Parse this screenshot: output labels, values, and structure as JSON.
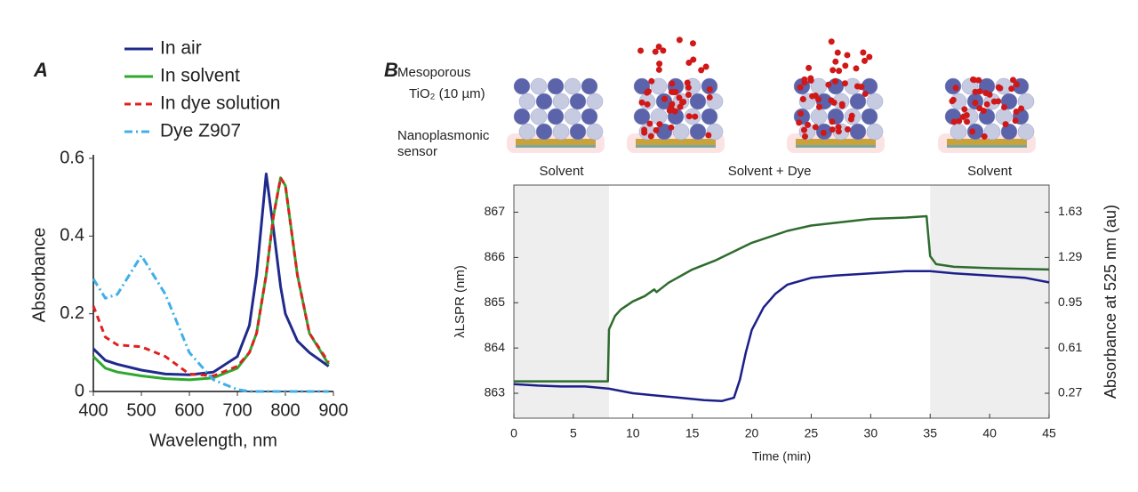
{
  "chart_data": [
    {
      "type": "line",
      "panel_label": "A",
      "xlabel": "Wavelength, nm",
      "ylabel": "Absorbance",
      "xlim": [
        400,
        900
      ],
      "xticks": [
        400,
        500,
        600,
        700,
        800,
        900
      ],
      "ylim": [
        0,
        0.6
      ],
      "yticks": [
        0,
        0.2,
        0.4,
        0.6
      ],
      "legend": "top",
      "x": [
        400,
        425,
        450,
        500,
        550,
        600,
        650,
        700,
        725,
        740,
        760,
        775,
        790,
        800,
        825,
        850,
        890
      ],
      "series": [
        {
          "name": "In air",
          "color": "#1f2a8c",
          "line_style": "solid",
          "values": [
            0.11,
            0.08,
            0.07,
            0.055,
            0.045,
            0.043,
            0.05,
            0.09,
            0.17,
            0.3,
            0.56,
            0.42,
            0.27,
            0.2,
            0.13,
            0.1,
            0.065
          ]
        },
        {
          "name": "In solvent",
          "color": "#2ea82e",
          "line_style": "solid",
          "values": [
            0.09,
            0.06,
            0.05,
            0.04,
            0.033,
            0.03,
            0.035,
            0.06,
            0.1,
            0.15,
            0.3,
            0.45,
            0.55,
            0.53,
            0.3,
            0.15,
            0.07
          ]
        },
        {
          "name": "In dye solution",
          "color": "#e02020",
          "line_style": "dashed",
          "values": [
            0.22,
            0.14,
            0.12,
            0.115,
            0.09,
            0.045,
            0.04,
            0.065,
            0.1,
            0.15,
            0.3,
            0.45,
            0.55,
            0.53,
            0.3,
            0.15,
            0.075
          ]
        },
        {
          "name": "Dye Z907",
          "color": "#3fb0ea",
          "line_style": "dashdot",
          "values": [
            0.29,
            0.24,
            0.25,
            0.35,
            0.25,
            0.1,
            0.03,
            0.005,
            0,
            0,
            0,
            0,
            0,
            0,
            0,
            0,
            0
          ]
        }
      ]
    },
    {
      "type": "line",
      "panel_label": "B",
      "xlabel": "Time (min)",
      "ylabel": "λLSPR (nm)",
      "y2label": "Absorbance at 525 nm (au)",
      "xlim": [
        0,
        45
      ],
      "xticks": [
        0,
        5,
        10,
        15,
        20,
        25,
        30,
        35,
        40,
        45
      ],
      "ylim": [
        862.45,
        867.6
      ],
      "yticks": [
        863,
        864,
        865,
        866,
        867
      ],
      "y2lim": [
        0.083,
        1.834
      ],
      "y2ticks": [
        0.27,
        0.61,
        0.95,
        1.29,
        1.63
      ],
      "regions": [
        {
          "label": "Solvent",
          "start": 0,
          "end": 8,
          "shaded": true
        },
        {
          "label": "Solvent + Dye",
          "start": 8,
          "end": 35,
          "shaded": false
        },
        {
          "label": "Solvent",
          "start": 35,
          "end": 45,
          "shaded": true
        }
      ],
      "series": [
        {
          "color": "#1c1f8a",
          "axis": "y",
          "x": [
            0,
            2,
            4,
            6,
            8,
            10,
            12,
            14,
            16,
            17.5,
            18.5,
            19,
            19.5,
            20,
            21,
            22,
            23,
            25,
            27,
            30,
            33,
            35,
            37,
            40,
            43,
            45
          ],
          "values": [
            863.2,
            863.17,
            863.15,
            863.15,
            863.1,
            863.0,
            862.95,
            862.9,
            862.85,
            862.83,
            862.9,
            863.3,
            863.9,
            864.4,
            864.9,
            865.2,
            865.4,
            865.55,
            865.6,
            865.65,
            865.7,
            865.7,
            865.65,
            865.6,
            865.55,
            865.45
          ]
        },
        {
          "color": "#2e6b2e",
          "axis": "y2",
          "x": [
            0,
            7.9,
            8,
            8.5,
            9,
            10,
            11,
            11.8,
            12,
            13,
            15,
            17,
            20,
            23,
            25,
            28,
            30,
            33,
            34.7,
            35,
            35.5,
            37,
            40,
            45
          ],
          "values": [
            0.36,
            0.36,
            0.75,
            0.85,
            0.9,
            0.96,
            1.0,
            1.05,
            1.03,
            1.1,
            1.2,
            1.27,
            1.4,
            1.49,
            1.53,
            1.56,
            1.58,
            1.59,
            1.6,
            1.3,
            1.24,
            1.22,
            1.21,
            1.2
          ]
        }
      ]
    }
  ],
  "illustration": {
    "labels": [
      "Mesoporous",
      "TiO₂ (10 µm)",
      "Nanoplasmonic",
      "sensor"
    ]
  }
}
